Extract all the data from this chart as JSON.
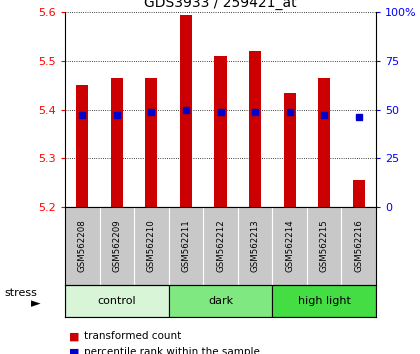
{
  "title": "GDS3933 / 259421_at",
  "samples": [
    "GSM562208",
    "GSM562209",
    "GSM562210",
    "GSM562211",
    "GSM562212",
    "GSM562213",
    "GSM562214",
    "GSM562215",
    "GSM562216"
  ],
  "transformed_counts": [
    5.45,
    5.465,
    5.465,
    5.595,
    5.51,
    5.52,
    5.435,
    5.465,
    5.255
  ],
  "percentile_values": [
    5.39,
    5.39,
    5.395,
    5.4,
    5.395,
    5.395,
    5.395,
    5.39,
    5.385
  ],
  "ylim_left": [
    5.2,
    5.6
  ],
  "ylim_right": [
    0,
    100
  ],
  "yticks_left": [
    5.2,
    5.3,
    5.4,
    5.5,
    5.6
  ],
  "yticks_right": [
    0,
    25,
    50,
    75,
    100
  ],
  "ytick_labels_right": [
    "0",
    "25",
    "50",
    "75",
    "100%"
  ],
  "groups": [
    {
      "label": "control",
      "indices": [
        0,
        1,
        2
      ],
      "color": "#d8f5d8"
    },
    {
      "label": "dark",
      "indices": [
        3,
        4,
        5
      ],
      "color": "#80e880"
    },
    {
      "label": "high light",
      "indices": [
        6,
        7,
        8
      ],
      "color": "#44dd44"
    }
  ],
  "bar_color": "#cc0000",
  "percentile_color": "#0000cc",
  "bar_width": 0.35,
  "bar_bottom": 5.2,
  "bg_color": "#ffffff",
  "label_area_color": "#c8c8c8",
  "stress_label": "stress",
  "legend_items": [
    {
      "label": "transformed count",
      "color": "#cc0000"
    },
    {
      "label": "percentile rank within the sample",
      "color": "#0000cc"
    }
  ]
}
